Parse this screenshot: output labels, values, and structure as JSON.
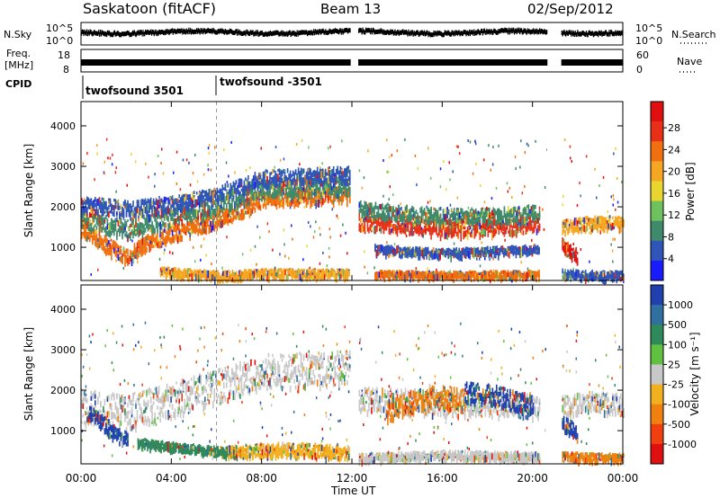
{
  "header": {
    "station": "Saskatoon (fitACF)",
    "beam": "Beam 13",
    "date": "02/Sep/2012"
  },
  "strips": {
    "nsky_label": "N.Sky",
    "nsky_ticks": [
      "10^5",
      "10^0"
    ],
    "nsearch_label": "N.Search",
    "nsearch_ticks": [
      "10^5",
      "10^0"
    ],
    "freq_label_1": "Freq.",
    "freq_label_2": "[MHz]",
    "freq_ticks": [
      "18",
      "8"
    ],
    "nave_label": "Nave",
    "nave_ticks": [
      "60",
      "0"
    ],
    "cpid_label": "CPID",
    "cpid_segments": [
      {
        "label": "twofsound 3501",
        "start_hour": 0
      },
      {
        "label": "twofsound -3501",
        "start_hour": 6
      }
    ]
  },
  "chart_data": [
    {
      "type": "heatmap",
      "name": "power",
      "xlabel": "",
      "ylabel": "Slant Range [km]",
      "x_ticks": [
        "00:00",
        "04:00",
        "08:00",
        "12:00",
        "16:00",
        "20:00",
        "00:00"
      ],
      "x_range_hours": [
        0,
        24
      ],
      "ylim": [
        180,
        4600
      ],
      "y_ticks": [
        1000,
        2000,
        3000,
        4000
      ],
      "colorbar": {
        "label": "Power [dB]",
        "ticks": [
          "4",
          "8",
          "12",
          "16",
          "20",
          "24",
          "28"
        ],
        "colors": [
          "#1a1aff",
          "#2f55b8",
          "#3f8a6a",
          "#6fc160",
          "#e8d530",
          "#f5a623",
          "#f07010",
          "#e83018",
          "#e01010"
        ]
      },
      "data_gaps_hours": [
        [
          11.95,
          12.3
        ],
        [
          20.65,
          21.3
        ]
      ],
      "bands": [
        {
          "t": [
            0.0,
            1.0,
            2.0,
            3.0,
            5.0,
            7.0,
            8.0,
            10.0,
            11.9
          ],
          "r": [
            1500,
            1150,
            800,
            1200,
            1550,
            1950,
            2250,
            2300,
            2350
          ],
          "w": 300,
          "c": "#f07010"
        },
        {
          "t": [
            0.0,
            2.0,
            4.0,
            6.0,
            8.0,
            11.9
          ],
          "r": [
            1750,
            1500,
            1800,
            2100,
            2500,
            2600
          ],
          "w": 350,
          "c": "#3f8a6a"
        },
        {
          "t": [
            0.0,
            2.0,
            4.0,
            6.0,
            8.0,
            11.9
          ],
          "r": [
            2100,
            2000,
            2100,
            2350,
            2750,
            2850
          ],
          "w": 300,
          "c": "#2f55b8"
        },
        {
          "t": [
            3.5,
            6.0,
            8.0,
            11.9
          ],
          "r": [
            450,
            350,
            400,
            400
          ],
          "w": 150,
          "c": "#f5a623"
        },
        {
          "t": [
            12.3,
            15.0,
            17.0,
            19.0,
            20.3
          ],
          "r": [
            1700,
            1550,
            1500,
            1550,
            1650
          ],
          "w": 300,
          "c": "#e83018"
        },
        {
          "t": [
            12.3,
            15.0,
            17.0,
            20.3
          ],
          "r": [
            2000,
            1850,
            1800,
            1900
          ],
          "w": 300,
          "c": "#3f8a6a"
        },
        {
          "t": [
            13.0,
            16.0,
            20.3
          ],
          "r": [
            1000,
            900,
            1000
          ],
          "w": 150,
          "c": "#2f55b8"
        },
        {
          "t": [
            13.0,
            16.0,
            20.3
          ],
          "r": [
            380,
            360,
            380
          ],
          "w": 120,
          "c": "#f07010"
        },
        {
          "t": [
            21.3,
            22.5,
            24.0
          ],
          "r": [
            1550,
            1650,
            1650
          ],
          "w": 250,
          "c": "#f5a623"
        },
        {
          "t": [
            21.3,
            21.8,
            22.0
          ],
          "r": [
            1100,
            900,
            800
          ],
          "w": 300,
          "c": "#e01010"
        },
        {
          "t": [
            21.3,
            23.0,
            24.0
          ],
          "r": [
            400,
            350,
            350
          ],
          "w": 150,
          "c": "#2f55b8"
        }
      ]
    },
    {
      "type": "heatmap",
      "name": "velocity",
      "xlabel": "Time UT",
      "ylabel": "Slant Range [km]",
      "x_ticks": [
        "00:00",
        "04:00",
        "08:00",
        "12:00",
        "16:00",
        "20:00",
        "00:00"
      ],
      "x_range_hours": [
        0,
        24
      ],
      "ylim": [
        180,
        4600
      ],
      "y_ticks": [
        1000,
        2000,
        3000,
        4000
      ],
      "colorbar": {
        "label": "Velocity [m s⁻¹]",
        "ticks": [
          "1000",
          "500",
          "100",
          "25",
          "-25",
          "-100",
          "-500",
          "-1000"
        ],
        "colors": [
          "#2040b0",
          "#3070a0",
          "#2f8a5a",
          "#60c040",
          "#c8c8c8",
          "#f0b020",
          "#f08010",
          "#f04010",
          "#e01010"
        ]
      },
      "data_gaps_hours": [
        [
          11.95,
          12.3
        ],
        [
          20.65,
          21.3
        ]
      ],
      "bands": [
        {
          "t": [
            0.0,
            2.0,
            4.0,
            6.0,
            8.0,
            11.9
          ],
          "r": [
            1650,
            1500,
            1800,
            2150,
            2500,
            2600
          ],
          "w": 700,
          "c": "#c8c8c8"
        },
        {
          "t": [
            0.3,
            1.0,
            1.7,
            2.1
          ],
          "r": [
            1500,
            1200,
            900,
            800
          ],
          "w": 300,
          "c": "#2040b0"
        },
        {
          "t": [
            2.5,
            5.0,
            7.0
          ],
          "r": [
            750,
            600,
            500
          ],
          "w": 150,
          "c": "#2f8a5a"
        },
        {
          "t": [
            6.5,
            9.0,
            11.9
          ],
          "r": [
            500,
            600,
            500
          ],
          "w": 250,
          "c": "#f0b020"
        },
        {
          "t": [
            12.3,
            15.0,
            17.0,
            20.3
          ],
          "r": [
            1800,
            1750,
            1700,
            1650
          ],
          "w": 500,
          "c": "#c8c8c8"
        },
        {
          "t": [
            13.5,
            15.5,
            17.0
          ],
          "r": [
            1500,
            1900,
            1800
          ],
          "w": 450,
          "c": "#f08010"
        },
        {
          "t": [
            17.0,
            18.5,
            20.0
          ],
          "r": [
            2000,
            1900,
            1650
          ],
          "w": 400,
          "c": "#2040b0"
        },
        {
          "t": [
            12.3,
            16.0,
            20.3
          ],
          "r": [
            380,
            450,
            400
          ],
          "w": 150,
          "c": "#c8c8c8"
        },
        {
          "t": [
            21.3,
            22.5,
            24.0
          ],
          "r": [
            1650,
            1750,
            1700
          ],
          "w": 400,
          "c": "#c8c8c8"
        },
        {
          "t": [
            21.3,
            21.7,
            22.0
          ],
          "r": [
            1300,
            1100,
            900
          ],
          "w": 300,
          "c": "#2040b0"
        },
        {
          "t": [
            21.3,
            22.5,
            24.0
          ],
          "r": [
            420,
            380,
            380
          ],
          "w": 150,
          "c": "#f08010"
        }
      ]
    }
  ]
}
